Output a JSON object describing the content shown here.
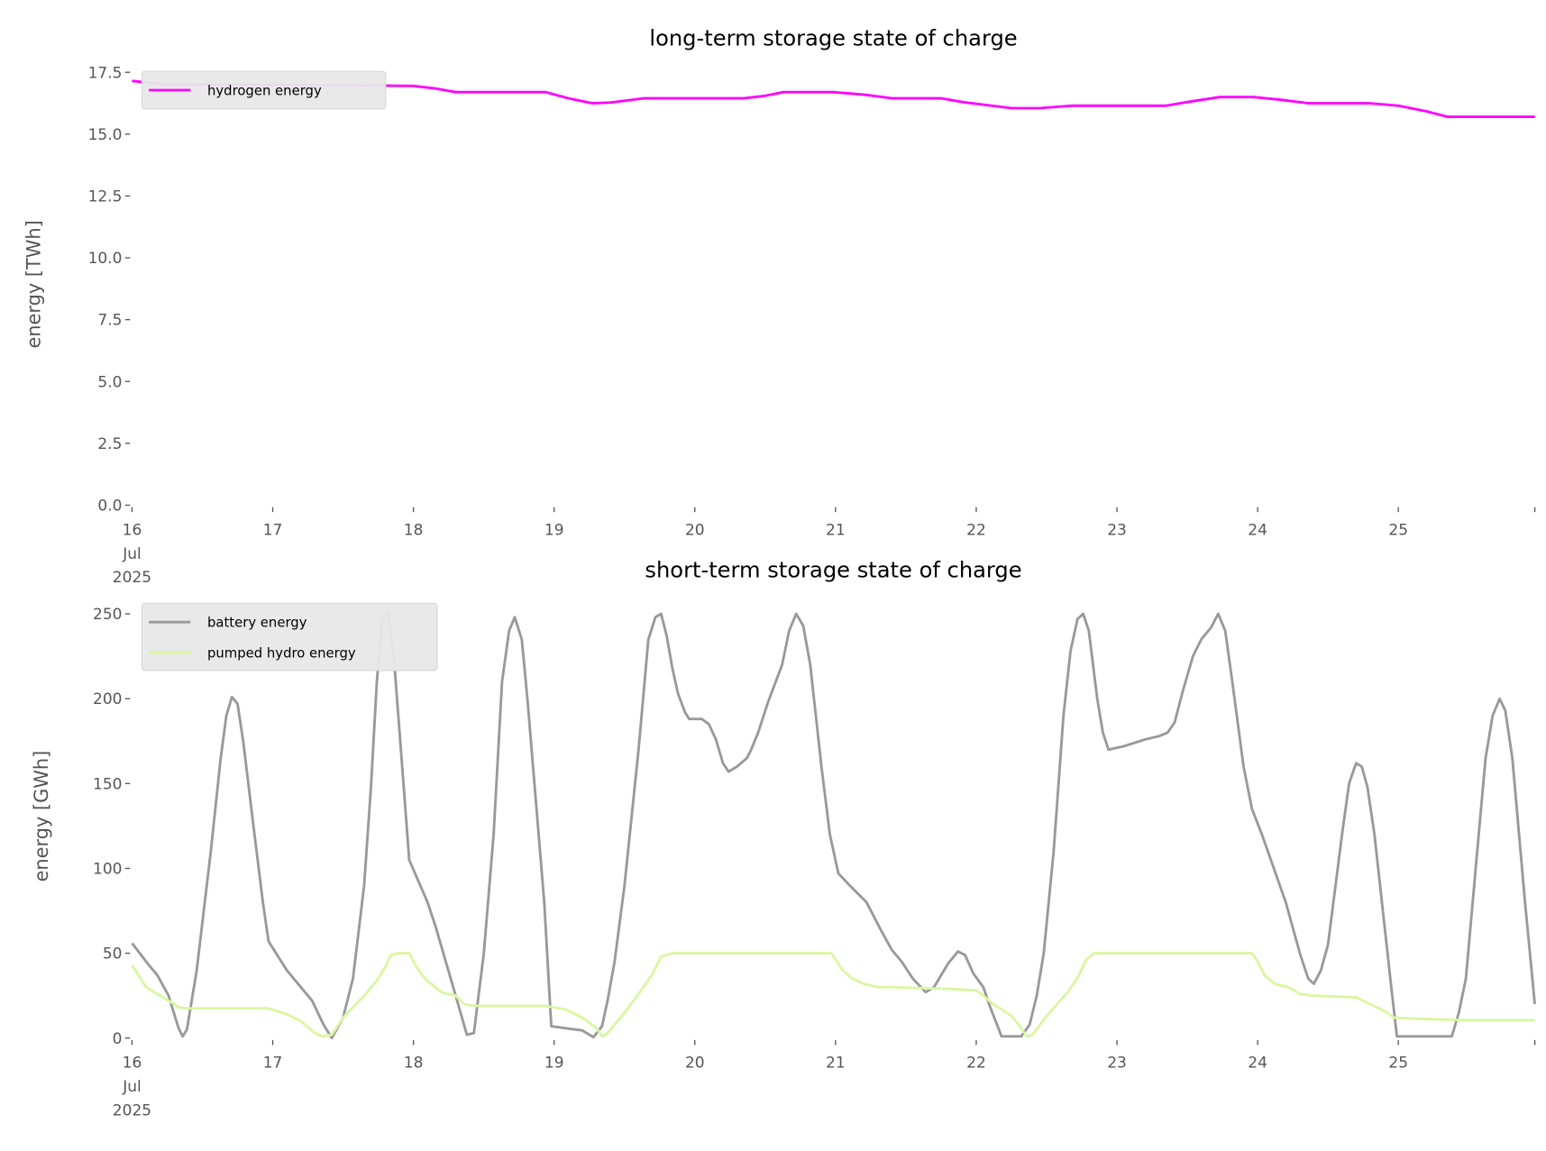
{
  "chart_data": [
    {
      "type": "line",
      "title": "long-term storage state of charge",
      "xlabel": "",
      "ylabel": "energy [TWh]",
      "x_unit": "days since 16 Jul 2025",
      "xlim": [
        0,
        9.97
      ],
      "ylim": [
        0,
        17.9
      ],
      "x_ticks": [
        0,
        1,
        2,
        3,
        4,
        5,
        6,
        7,
        8,
        9,
        9.97
      ],
      "x_tick_labels": [
        "16\nJul\n2025",
        "17",
        "18",
        "19",
        "20",
        "21",
        "22",
        "23",
        "24",
        "25",
        ""
      ],
      "y_ticks": [
        0,
        2.5,
        5,
        7.5,
        10,
        12.5,
        15,
        17.5
      ],
      "y_tick_labels": [
        "0.0",
        "2.5",
        "5.0",
        "7.5",
        "10.0",
        "12.5",
        "15.0",
        "17.5"
      ],
      "grid": false,
      "legend_position": "top-left",
      "series": [
        {
          "name": "hydrogen energy",
          "color": "#ff00ff",
          "points": [
            [
              0,
              17.15
            ],
            [
              0.26,
              17.0
            ],
            [
              1.0,
              17.0
            ],
            [
              2.0,
              16.95
            ],
            [
              2.15,
              16.85
            ],
            [
              2.3,
              16.7
            ],
            [
              2.94,
              16.7
            ],
            [
              3.1,
              16.45
            ],
            [
              3.27,
              16.25
            ],
            [
              3.4,
              16.28
            ],
            [
              3.64,
              16.45
            ],
            [
              4.35,
              16.45
            ],
            [
              4.5,
              16.55
            ],
            [
              4.63,
              16.7
            ],
            [
              4.98,
              16.7
            ],
            [
              5.2,
              16.6
            ],
            [
              5.4,
              16.45
            ],
            [
              5.75,
              16.45
            ],
            [
              5.9,
              16.3
            ],
            [
              6.25,
              16.05
            ],
            [
              6.45,
              16.05
            ],
            [
              6.68,
              16.15
            ],
            [
              7.35,
              16.15
            ],
            [
              7.5,
              16.3
            ],
            [
              7.73,
              16.5
            ],
            [
              7.97,
              16.5
            ],
            [
              8.15,
              16.4
            ],
            [
              8.36,
              16.25
            ],
            [
              8.79,
              16.25
            ],
            [
              9.0,
              16.15
            ],
            [
              9.2,
              15.92
            ],
            [
              9.35,
              15.7
            ],
            [
              9.97,
              15.7
            ]
          ]
        }
      ]
    },
    {
      "type": "line",
      "title": "short-term storage state of charge",
      "xlabel": "",
      "ylabel": "energy [GWh]",
      "x_unit": "days since 16 Jul 2025",
      "xlim": [
        0,
        9.97
      ],
      "ylim": [
        0,
        258
      ],
      "x_ticks": [
        0,
        1,
        2,
        3,
        4,
        5,
        6,
        7,
        8,
        9,
        9.97
      ],
      "x_tick_labels": [
        "16\nJul\n2025",
        "17",
        "18",
        "19",
        "20",
        "21",
        "22",
        "23",
        "24",
        "25",
        ""
      ],
      "y_ticks": [
        0,
        50,
        100,
        150,
        200,
        250
      ],
      "y_tick_labels": [
        "0",
        "50",
        "100",
        "150",
        "200",
        "250"
      ],
      "grid": false,
      "legend_position": "top-left",
      "series": [
        {
          "name": "battery energy",
          "color": "#999999",
          "points": [
            [
              0,
              56
            ],
            [
              0.12,
              43
            ],
            [
              0.18,
              37
            ],
            [
              0.26,
              25
            ],
            [
              0.33,
              6
            ],
            [
              0.36,
              1
            ],
            [
              0.39,
              5
            ],
            [
              0.46,
              40
            ],
            [
              0.56,
              110
            ],
            [
              0.63,
              165
            ],
            [
              0.67,
              190
            ],
            [
              0.71,
              201
            ],
            [
              0.75,
              197
            ],
            [
              0.79,
              175
            ],
            [
              0.87,
              120
            ],
            [
              0.93,
              80
            ],
            [
              0.97,
              57
            ],
            [
              1.1,
              40
            ],
            [
              1.28,
              22
            ],
            [
              1.36,
              8
            ],
            [
              1.42,
              0
            ],
            [
              1.5,
              12
            ],
            [
              1.57,
              35
            ],
            [
              1.65,
              90
            ],
            [
              1.7,
              150
            ],
            [
              1.74,
              210
            ],
            [
              1.78,
              248
            ],
            [
              1.82,
              250
            ],
            [
              1.86,
              225
            ],
            [
              1.92,
              160
            ],
            [
              1.97,
              105
            ],
            [
              2.1,
              80
            ],
            [
              2.16,
              65
            ],
            [
              2.3,
              25
            ],
            [
              2.38,
              2
            ],
            [
              2.43,
              3
            ],
            [
              2.5,
              50
            ],
            [
              2.57,
              120
            ],
            [
              2.63,
              210
            ],
            [
              2.68,
              240
            ],
            [
              2.72,
              248
            ],
            [
              2.77,
              235
            ],
            [
              2.81,
              200
            ],
            [
              2.93,
              80
            ],
            [
              2.98,
              7
            ],
            [
              3.2,
              4.5
            ],
            [
              3.28,
              0.5
            ],
            [
              3.34,
              7
            ],
            [
              3.38,
              22
            ],
            [
              3.43,
              45
            ],
            [
              3.5,
              90
            ],
            [
              3.6,
              170
            ],
            [
              3.67,
              235
            ],
            [
              3.72,
              248
            ],
            [
              3.76,
              250
            ],
            [
              3.8,
              237
            ],
            [
              3.84,
              218
            ],
            [
              3.88,
              203
            ],
            [
              3.93,
              192
            ],
            [
              3.96,
              188
            ],
            [
              4.05,
              188
            ],
            [
              4.1,
              185
            ],
            [
              4.15,
              176
            ],
            [
              4.2,
              162
            ],
            [
              4.24,
              157
            ],
            [
              4.3,
              160
            ],
            [
              4.37,
              165
            ],
            [
              4.4,
              170
            ],
            [
              4.45,
              180
            ],
            [
              4.52,
              198
            ],
            [
              4.62,
              220
            ],
            [
              4.67,
              240
            ],
            [
              4.72,
              250
            ],
            [
              4.77,
              243
            ],
            [
              4.82,
              220
            ],
            [
              4.9,
              160
            ],
            [
              4.96,
              120
            ],
            [
              5.02,
              97
            ],
            [
              5.1,
              90
            ],
            [
              5.22,
              80
            ],
            [
              5.32,
              64
            ],
            [
              5.4,
              52
            ],
            [
              5.47,
              45
            ],
            [
              5.55,
              35
            ],
            [
              5.64,
              27
            ],
            [
              5.7,
              30
            ],
            [
              5.8,
              44
            ],
            [
              5.87,
              51
            ],
            [
              5.92,
              49
            ],
            [
              5.98,
              38
            ],
            [
              6.05,
              30
            ],
            [
              6.1,
              18
            ],
            [
              6.18,
              1
            ],
            [
              6.32,
              1
            ],
            [
              6.38,
              8
            ],
            [
              6.43,
              25
            ],
            [
              6.48,
              50
            ],
            [
              6.55,
              110
            ],
            [
              6.62,
              190
            ],
            [
              6.67,
              228
            ],
            [
              6.72,
              247
            ],
            [
              6.76,
              250
            ],
            [
              6.8,
              240
            ],
            [
              6.86,
              200
            ],
            [
              6.9,
              180
            ],
            [
              6.94,
              170
            ],
            [
              7.05,
              172
            ],
            [
              7.2,
              176
            ],
            [
              7.3,
              178
            ],
            [
              7.36,
              180
            ],
            [
              7.41,
              186
            ],
            [
              7.47,
              205
            ],
            [
              7.54,
              225
            ],
            [
              7.6,
              235
            ],
            [
              7.67,
              242
            ],
            [
              7.72,
              250
            ],
            [
              7.77,
              240
            ],
            [
              7.82,
              210
            ],
            [
              7.9,
              160
            ],
            [
              7.96,
              135
            ],
            [
              8.03,
              120
            ],
            [
              8.2,
              80
            ],
            [
              8.3,
              50
            ],
            [
              8.36,
              35
            ],
            [
              8.4,
              32
            ],
            [
              8.45,
              40
            ],
            [
              8.5,
              55
            ],
            [
              8.6,
              120
            ],
            [
              8.65,
              150
            ],
            [
              8.7,
              162
            ],
            [
              8.74,
              160
            ],
            [
              8.78,
              148
            ],
            [
              8.83,
              120
            ],
            [
              8.95,
              30
            ],
            [
              8.99,
              1
            ],
            [
              9.38,
              1
            ],
            [
              9.43,
              15
            ],
            [
              9.48,
              35
            ],
            [
              9.55,
              100
            ],
            [
              9.62,
              165
            ],
            [
              9.67,
              190
            ],
            [
              9.72,
              200
            ],
            [
              9.76,
              193
            ],
            [
              9.81,
              165
            ],
            [
              9.9,
              80
            ],
            [
              9.97,
              20
            ]
          ]
        },
        {
          "name": "pumped hydro energy",
          "color": "#d9f7a0",
          "points": [
            [
              0,
              43
            ],
            [
              0.1,
              30
            ],
            [
              0.2,
              25
            ],
            [
              0.3,
              20
            ],
            [
              0.33,
              18
            ],
            [
              0.4,
              17.5
            ],
            [
              0.97,
              17.5
            ],
            [
              1.1,
              14
            ],
            [
              1.2,
              10
            ],
            [
              1.3,
              3
            ],
            [
              1.35,
              1
            ],
            [
              1.42,
              2
            ],
            [
              1.5,
              12
            ],
            [
              1.65,
              25
            ],
            [
              1.75,
              35
            ],
            [
              1.8,
              42
            ],
            [
              1.84,
              49
            ],
            [
              1.9,
              50
            ],
            [
              1.97,
              50
            ],
            [
              2.02,
              42
            ],
            [
              2.08,
              35
            ],
            [
              2.2,
              27
            ],
            [
              2.3,
              25
            ],
            [
              2.36,
              20
            ],
            [
              2.43,
              19
            ],
            [
              2.94,
              19
            ],
            [
              3.0,
              18
            ],
            [
              3.08,
              17
            ],
            [
              3.2,
              12
            ],
            [
              3.3,
              6
            ],
            [
              3.34,
              1
            ],
            [
              3.38,
              3
            ],
            [
              3.5,
              15
            ],
            [
              3.6,
              26
            ],
            [
              3.7,
              38
            ],
            [
              3.76,
              48
            ],
            [
              3.84,
              50
            ],
            [
              4.97,
              50
            ],
            [
              5.05,
              40
            ],
            [
              5.12,
              35
            ],
            [
              5.2,
              32
            ],
            [
              5.3,
              30
            ],
            [
              5.4,
              30
            ],
            [
              5.8,
              29
            ],
            [
              6.0,
              28
            ],
            [
              6.05,
              25
            ],
            [
              6.12,
              20
            ],
            [
              6.25,
              13
            ],
            [
              6.3,
              8
            ],
            [
              6.36,
              1
            ],
            [
              6.4,
              2
            ],
            [
              6.5,
              13
            ],
            [
              6.65,
              27
            ],
            [
              6.73,
              37
            ],
            [
              6.78,
              46
            ],
            [
              6.84,
              50
            ],
            [
              7.96,
              50
            ],
            [
              8.0,
              45
            ],
            [
              8.05,
              37
            ],
            [
              8.12,
              32
            ],
            [
              8.22,
              30
            ],
            [
              8.3,
              26
            ],
            [
              8.4,
              25
            ],
            [
              8.7,
              24
            ],
            [
              8.8,
              20
            ],
            [
              8.9,
              16
            ],
            [
              8.97,
              12
            ],
            [
              9.1,
              11.5
            ],
            [
              9.3,
              11
            ],
            [
              9.5,
              10.5
            ],
            [
              9.97,
              10.5
            ]
          ]
        }
      ]
    }
  ]
}
